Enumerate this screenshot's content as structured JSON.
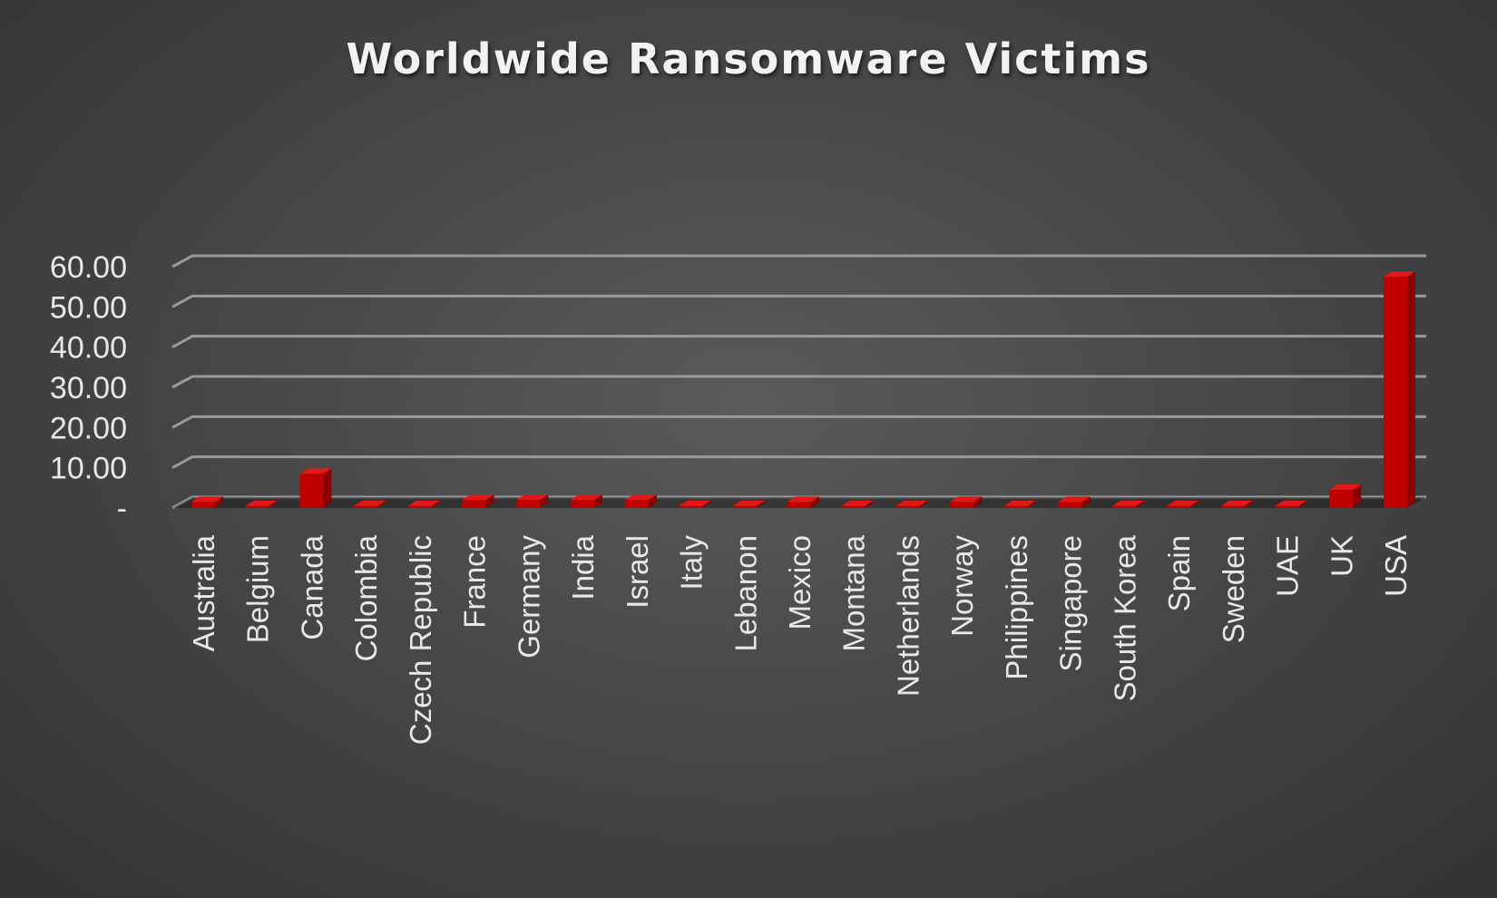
{
  "chart_data": {
    "type": "bar",
    "title": "Worldwide Ransomware Victims",
    "xlabel": "",
    "ylabel": "",
    "ylim": [
      0,
      60
    ],
    "y_ticks": [
      "-",
      "10.00",
      "20.00",
      "30.00",
      "40.00",
      "50.00",
      "60.00"
    ],
    "y_tick_values": [
      0,
      10,
      20,
      30,
      40,
      50,
      60
    ],
    "grid": true,
    "legend": "none",
    "categories": [
      "Australia",
      "Belgium",
      "Canada",
      "Colombia",
      "Czech Republic",
      "France",
      "Germany",
      "India",
      "Israel",
      "Italy",
      "Lebanon",
      "Mexico",
      "Montana",
      "Netherlands",
      "Norway",
      "Philippines",
      "Singapore",
      "South Korea",
      "Spain",
      "Sweden",
      "UAE",
      "UK",
      "USA"
    ],
    "values": [
      1.5,
      0.5,
      8.5,
      0.5,
      0.5,
      2.0,
      2.0,
      2.0,
      2.0,
      0.5,
      0.5,
      1.5,
      0.5,
      0.5,
      1.5,
      0.5,
      1.5,
      0.5,
      0.5,
      0.5,
      0.5,
      4.5,
      57.5
    ],
    "colors": {
      "bar_front": "#c00000",
      "bar_side": "#8a0000",
      "bar_top": "#e01818",
      "gridline": "#9a9a9a",
      "text": "#e8e8e8"
    }
  }
}
